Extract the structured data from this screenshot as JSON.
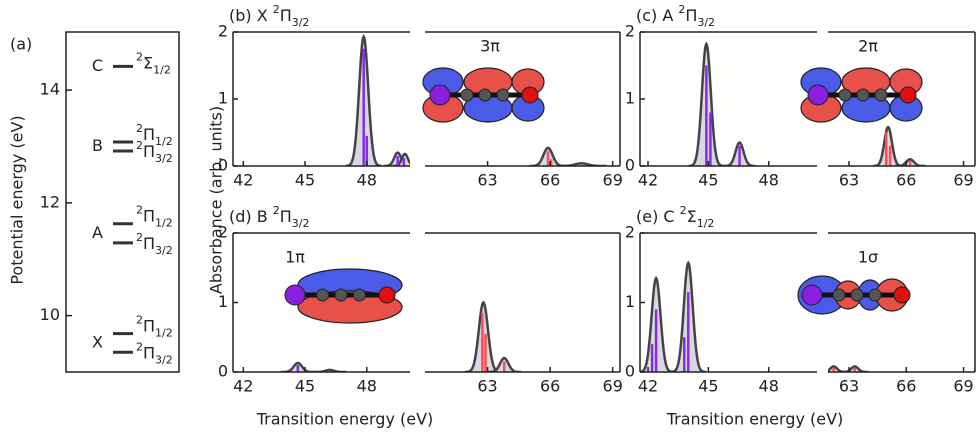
{
  "y_label": "Absorbance (arb. units)",
  "x_label": "Transition energy (eV)",
  "chart_data": [
    {
      "type": "levels",
      "label": "(a)",
      "y_label": "Potential energy (eV)",
      "ylim": [
        9,
        15.03
      ],
      "yticks": [
        10,
        12,
        14
      ],
      "groups": [
        {
          "state": "X",
          "levels": [
            {
              "energy": 9.68,
              "term": {
                "sup": "2",
                "sym": "Π",
                "sub": "1/2"
              }
            },
            {
              "energy": 9.35,
              "term": {
                "sup": "2",
                "sym": "Π",
                "sub": "3/2"
              }
            }
          ]
        },
        {
          "state": "A",
          "levels": [
            {
              "energy": 11.63,
              "term": {
                "sup": "2",
                "sym": "Π",
                "sub": "1/2"
              }
            },
            {
              "energy": 11.29,
              "term": {
                "sup": "2",
                "sym": "Π",
                "sub": "3/2"
              }
            }
          ]
        },
        {
          "state": "B",
          "levels": [
            {
              "energy": 13.08,
              "term": {
                "sup": "2",
                "sym": "Π",
                "sub": "1/2"
              }
            },
            {
              "energy": 12.92,
              "term": {
                "sup": "2",
                "sym": "Π",
                "sub": "3/2"
              }
            }
          ]
        },
        {
          "state": "C",
          "levels": [
            {
              "energy": 14.42,
              "term": {
                "sup": "2",
                "sym": "Σ",
                "sub": "1/2"
              }
            }
          ]
        }
      ]
    },
    {
      "type": "spectrum",
      "title": {
        "label": "(b) X",
        "sup": "2",
        "sym": "Π",
        "sub": "3/2"
      },
      "orbital": "3π",
      "ylim": [
        0,
        2
      ],
      "yticks": [
        0,
        1,
        2
      ],
      "axes": [
        {
          "color": "#8a2be2",
          "xlim": [
            41.5,
            50.1
          ],
          "xticks": [
            42,
            45,
            48
          ],
          "peaks": [
            {
              "center": 47.85,
              "height": 1.93,
              "width": 0.22
            },
            {
              "center": 49.5,
              "height": 0.2,
              "width": 0.17
            },
            {
              "center": 49.85,
              "height": 0.18,
              "width": 0.15
            }
          ],
          "sticks": [
            {
              "x": 47.85,
              "height": 1.75
            },
            {
              "x": 48.0,
              "height": 0.45
            },
            {
              "x": 49.5,
              "height": 0.15
            },
            {
              "x": 49.8,
              "height": 0.12
            }
          ]
        },
        {
          "color": "#ff4d4d",
          "xlim": [
            60,
            69.35
          ],
          "xticks": [
            63,
            66,
            69
          ],
          "peaks": [
            {
              "center": 65.9,
              "height": 0.27,
              "width": 0.22
            },
            {
              "center": 67.5,
              "height": 0.04,
              "width": 0.3
            }
          ],
          "sticks": [
            {
              "x": 65.9,
              "height": 0.22
            },
            {
              "x": 66.05,
              "height": 0.1
            }
          ]
        }
      ]
    },
    {
      "type": "spectrum",
      "title": {
        "label": "(c) A",
        "sup": "2",
        "sym": "Π",
        "sub": "3/2"
      },
      "orbital": "2π",
      "ylim": [
        0,
        2
      ],
      "yticks": [
        0,
        1,
        2
      ],
      "axes": [
        {
          "color": "#8a2be2",
          "xlim": [
            41.6,
            50.4
          ],
          "xticks": [
            42,
            45,
            48
          ],
          "peaks": [
            {
              "center": 44.9,
              "height": 1.82,
              "width": 0.22
            },
            {
              "center": 46.55,
              "height": 0.35,
              "width": 0.2
            }
          ],
          "sticks": [
            {
              "x": 44.9,
              "height": 1.5
            },
            {
              "x": 45.1,
              "height": 0.8
            },
            {
              "x": 46.55,
              "height": 0.3
            }
          ]
        },
        {
          "color": "#ff4d4d",
          "xlim": [
            61.9,
            69.6
          ],
          "xticks": [
            63,
            66,
            69
          ],
          "peaks": [
            {
              "center": 65.05,
              "height": 0.58,
              "width": 0.2
            },
            {
              "center": 66.2,
              "height": 0.1,
              "width": 0.2
            }
          ],
          "sticks": [
            {
              "x": 64.95,
              "height": 0.5
            },
            {
              "x": 65.15,
              "height": 0.3
            },
            {
              "x": 66.2,
              "height": 0.08
            }
          ]
        }
      ]
    },
    {
      "type": "spectrum",
      "title": {
        "label": "(d) B",
        "sup": "2",
        "sym": "Π",
        "sub": "3/2"
      },
      "orbital": "1π",
      "ylim": [
        0,
        2
      ],
      "yticks": [
        0,
        1,
        2
      ],
      "axes": [
        {
          "color": "#8a2be2",
          "xlim": [
            41.5,
            50.1
          ],
          "xticks": [
            42,
            45,
            48
          ],
          "peaks": [
            {
              "center": 44.65,
              "height": 0.13,
              "width": 0.2
            },
            {
              "center": 46.2,
              "height": 0.03,
              "width": 0.2
            }
          ],
          "sticks": [
            {
              "x": 44.65,
              "height": 0.1
            }
          ]
        },
        {
          "color": "#ff4d4d",
          "xlim": [
            60,
            69.35
          ],
          "xticks": [
            63,
            66,
            69
          ],
          "peaks": [
            {
              "center": 62.8,
              "height": 1.0,
              "width": 0.22
            },
            {
              "center": 63.8,
              "height": 0.2,
              "width": 0.2
            }
          ],
          "sticks": [
            {
              "x": 62.75,
              "height": 0.85
            },
            {
              "x": 62.9,
              "height": 0.55
            },
            {
              "x": 63.8,
              "height": 0.15
            }
          ]
        }
      ]
    },
    {
      "type": "spectrum",
      "title": {
        "label": "(e) C",
        "sup": "2",
        "sym": "Σ",
        "sub": "1/2"
      },
      "orbital": "1σ",
      "ylim": [
        0,
        2
      ],
      "yticks": [
        0,
        1,
        2
      ],
      "axes": [
        {
          "color": "#8a2be2",
          "xlim": [
            41.6,
            50.4
          ],
          "xticks": [
            42,
            45,
            48
          ],
          "peaks": [
            {
              "center": 42.4,
              "height": 1.35,
              "width": 0.22
            },
            {
              "center": 44.0,
              "height": 1.57,
              "width": 0.22
            }
          ],
          "sticks": [
            {
              "x": 42.4,
              "height": 0.9
            },
            {
              "x": 42.2,
              "height": 0.4
            },
            {
              "x": 44.0,
              "height": 1.15
            },
            {
              "x": 43.8,
              "height": 0.5
            }
          ]
        },
        {
          "color": "#ff4d4d",
          "xlim": [
            61.9,
            69.6
          ],
          "xticks": [
            63,
            66,
            69
          ],
          "peaks": [
            {
              "center": 62.2,
              "height": 0.08,
              "width": 0.18
            },
            {
              "center": 63.3,
              "height": 0.08,
              "width": 0.18
            }
          ],
          "sticks": [
            {
              "x": 62.2,
              "height": 0.06
            },
            {
              "x": 63.3,
              "height": 0.06
            }
          ]
        }
      ]
    }
  ]
}
